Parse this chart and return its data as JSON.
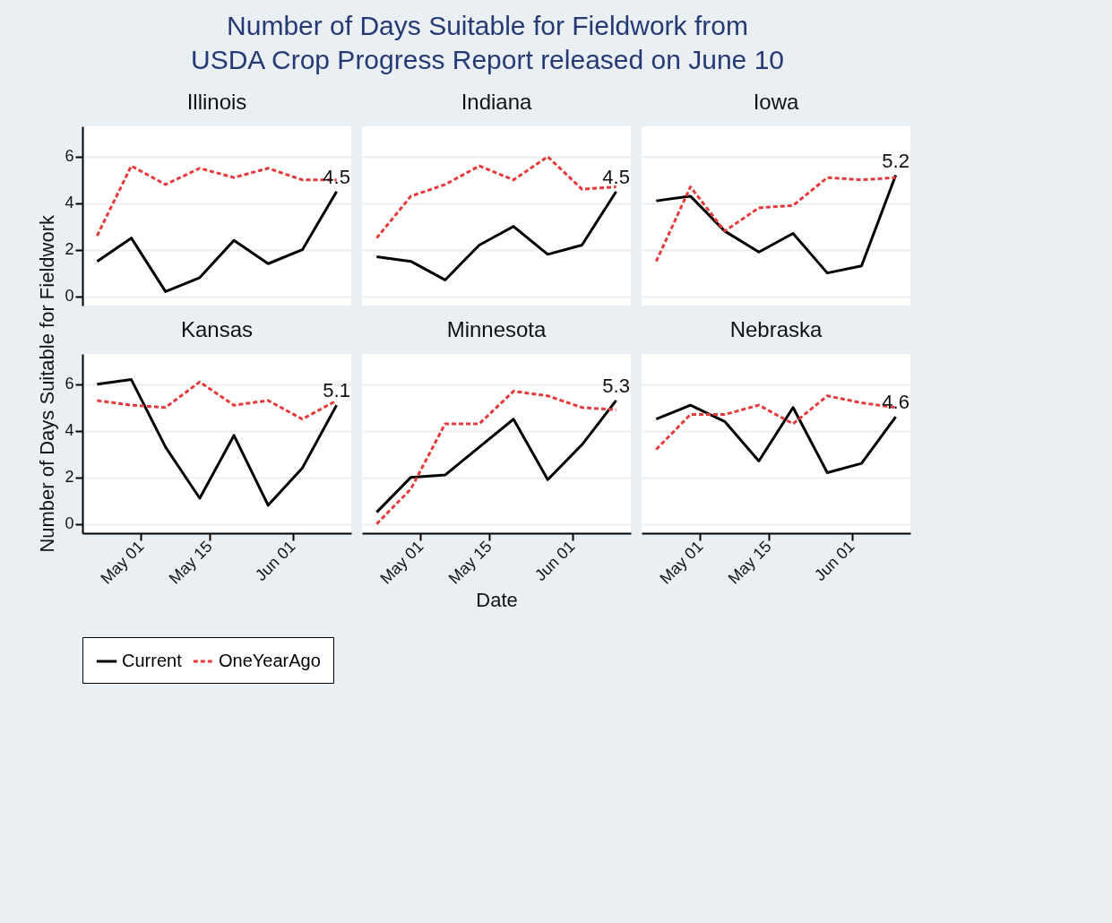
{
  "chart_data": [
    {
      "type": "line",
      "title": "Illinois",
      "annotations": [
        "Number of Days Suitable for Fieldwork from USDA Crop Progress Report released on June 10"
      ],
      "ylabel": "Number of Days Suitable for Fieldwork",
      "x": [
        "--04-22",
        "--04-29",
        "--05-06",
        "--05-13",
        "--05-20",
        "--05-27",
        "--06-03",
        "--06-10"
      ],
      "xlim": [
        "--04-19",
        "--06-13"
      ],
      "xticks": [
        {
          "value": "--05-01",
          "label": "May 01"
        },
        {
          "value": "--05-15",
          "label": "May 15"
        },
        {
          "value": "--06-01",
          "label": "Jun 01"
        }
      ],
      "ylim": [
        -0.4,
        7.3
      ],
      "yticks": [
        0,
        2,
        4,
        6
      ],
      "grid": "y",
      "legend": "bottom",
      "tick_labels": "y",
      "series": [
        {
          "name": "Current",
          "color": "#000000",
          "line_style": "solid",
          "values": [
            1.5,
            2.5,
            0.2,
            0.8,
            2.4,
            1.4,
            2.0,
            4.5
          ],
          "value_labels": [
            null,
            null,
            null,
            null,
            null,
            null,
            null,
            "4.5"
          ]
        },
        {
          "name": "OneYearAgo",
          "color": "#e8393a",
          "line_style": "dashed",
          "values": [
            2.6,
            5.6,
            4.8,
            5.5,
            5.1,
            5.5,
            5.0,
            5.0
          ]
        }
      ]
    },
    {
      "type": "line",
      "title": "Indiana",
      "x": [
        "--04-22",
        "--04-29",
        "--05-06",
        "--05-13",
        "--05-20",
        "--05-27",
        "--06-03",
        "--06-10"
      ],
      "xlim": [
        "--04-19",
        "--06-13"
      ],
      "xticks": [
        {
          "value": "--05-01",
          "label": "May 01"
        },
        {
          "value": "--05-15",
          "label": "May 15"
        },
        {
          "value": "--06-01",
          "label": "Jun 01"
        }
      ],
      "ylim": [
        -0.4,
        7.3
      ],
      "yticks": [
        0,
        2,
        4,
        6
      ],
      "grid": "y",
      "tick_labels": false,
      "series": [
        {
          "name": "Current",
          "color": "#000000",
          "line_style": "solid",
          "values": [
            1.7,
            1.5,
            0.7,
            2.2,
            3.0,
            1.8,
            2.2,
            4.5
          ],
          "value_labels": [
            null,
            null,
            null,
            null,
            null,
            null,
            null,
            "4.5"
          ]
        },
        {
          "name": "OneYearAgo",
          "color": "#e8393a",
          "line_style": "dashed",
          "values": [
            2.5,
            4.3,
            4.8,
            5.6,
            5.0,
            6.0,
            4.6,
            4.7
          ]
        }
      ]
    },
    {
      "type": "line",
      "title": "Iowa",
      "x": [
        "--04-22",
        "--04-29",
        "--05-06",
        "--05-13",
        "--05-20",
        "--05-27",
        "--06-03",
        "--06-10"
      ],
      "xlim": [
        "--04-19",
        "--06-13"
      ],
      "xticks": [
        {
          "value": "--05-01",
          "label": "May 01"
        },
        {
          "value": "--05-15",
          "label": "May 15"
        },
        {
          "value": "--06-01",
          "label": "Jun 01"
        }
      ],
      "ylim": [
        -0.4,
        7.3
      ],
      "yticks": [
        0,
        2,
        4,
        6
      ],
      "grid": "y",
      "tick_labels": false,
      "series": [
        {
          "name": "Current",
          "color": "#000000",
          "line_style": "solid",
          "values": [
            4.1,
            4.3,
            2.8,
            1.9,
            2.7,
            1.0,
            1.3,
            5.2
          ],
          "value_labels": [
            null,
            null,
            null,
            null,
            null,
            null,
            null,
            "5.2"
          ]
        },
        {
          "name": "OneYearAgo",
          "color": "#e8393a",
          "line_style": "dashed",
          "values": [
            1.5,
            4.7,
            2.8,
            3.8,
            3.9,
            5.1,
            5.0,
            5.1
          ]
        }
      ]
    },
    {
      "type": "line",
      "title": "Kansas",
      "x": [
        "--04-22",
        "--04-29",
        "--05-06",
        "--05-13",
        "--05-20",
        "--05-27",
        "--06-03",
        "--06-10"
      ],
      "xlim": [
        "--04-19",
        "--06-13"
      ],
      "xticks": [
        {
          "value": "--05-01",
          "label": "May 01"
        },
        {
          "value": "--05-15",
          "label": "May 15"
        },
        {
          "value": "--06-01",
          "label": "Jun 01"
        }
      ],
      "ylim": [
        -0.4,
        7.3
      ],
      "yticks": [
        0,
        2,
        4,
        6
      ],
      "grid": "y",
      "series": [
        {
          "name": "Current",
          "color": "#000000",
          "line_style": "solid",
          "values": [
            6.0,
            6.2,
            3.3,
            1.1,
            3.8,
            0.8,
            2.4,
            5.1
          ],
          "value_labels": [
            null,
            null,
            null,
            null,
            null,
            null,
            null,
            "5.1"
          ]
        },
        {
          "name": "OneYearAgo",
          "color": "#e8393a",
          "line_style": "dashed",
          "values": [
            5.3,
            5.1,
            5.0,
            6.1,
            5.1,
            5.3,
            4.5,
            5.3
          ]
        }
      ]
    },
    {
      "type": "line",
      "title": "Minnesota",
      "xlabel": "Date",
      "x": [
        "--04-22",
        "--04-29",
        "--05-06",
        "--05-13",
        "--05-20",
        "--05-27",
        "--06-03",
        "--06-10"
      ],
      "xlim": [
        "--04-19",
        "--06-13"
      ],
      "xticks": [
        {
          "value": "--05-01",
          "label": "May 01"
        },
        {
          "value": "--05-15",
          "label": "May 15"
        },
        {
          "value": "--06-01",
          "label": "Jun 01"
        }
      ],
      "ylim": [
        -0.4,
        7.3
      ],
      "yticks": [
        0,
        2,
        4,
        6
      ],
      "grid": "y",
      "tick_labels": "x",
      "series": [
        {
          "name": "Current",
          "color": "#000000",
          "line_style": "solid",
          "values": [
            0.5,
            2.0,
            2.1,
            3.3,
            4.5,
            1.9,
            3.4,
            5.3
          ],
          "value_labels": [
            null,
            null,
            null,
            null,
            null,
            null,
            null,
            "5.3"
          ]
        },
        {
          "name": "OneYearAgo",
          "color": "#e8393a",
          "line_style": "dashed",
          "values": [
            0.0,
            1.5,
            4.3,
            4.3,
            5.7,
            5.5,
            5.0,
            4.9
          ]
        }
      ]
    },
    {
      "type": "line",
      "title": "Nebraska",
      "x": [
        "--04-22",
        "--04-29",
        "--05-06",
        "--05-13",
        "--05-20",
        "--05-27",
        "--06-03",
        "--06-10"
      ],
      "xlim": [
        "--04-19",
        "--06-13"
      ],
      "xticks": [
        {
          "value": "--05-01",
          "label": "May 01"
        },
        {
          "value": "--05-15",
          "label": "May 15"
        },
        {
          "value": "--06-01",
          "label": "Jun 01"
        }
      ],
      "ylim": [
        -0.4,
        7.3
      ],
      "yticks": [
        0,
        2,
        4,
        6
      ],
      "grid": "y",
      "tick_labels": "x",
      "series": [
        {
          "name": "Current",
          "color": "#000000",
          "line_style": "solid",
          "values": [
            4.5,
            5.1,
            4.4,
            2.7,
            5.0,
            2.2,
            2.6,
            4.6
          ],
          "value_labels": [
            null,
            null,
            null,
            null,
            null,
            null,
            null,
            "4.6"
          ]
        },
        {
          "name": "OneYearAgo",
          "color": "#e8393a",
          "line_style": "dashed",
          "values": [
            3.2,
            4.7,
            4.7,
            5.1,
            4.3,
            5.5,
            5.2,
            5.0
          ]
        }
      ]
    }
  ]
}
